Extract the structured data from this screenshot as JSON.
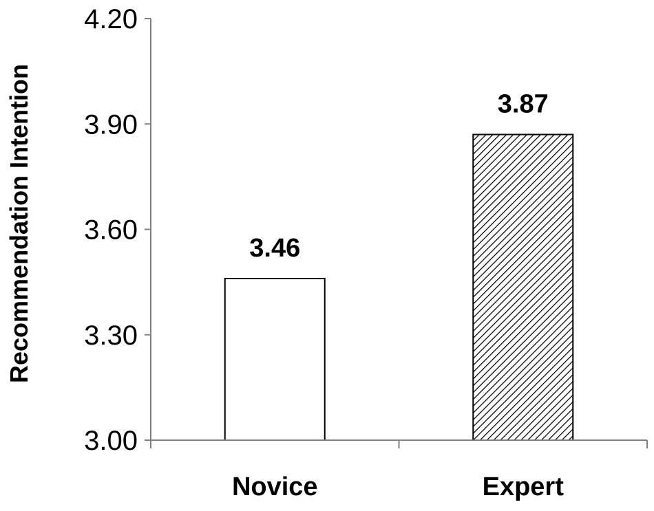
{
  "chart_data": {
    "type": "bar",
    "categories": [
      "Novice",
      "Expert"
    ],
    "values": [
      3.46,
      3.87
    ],
    "data_labels": [
      "3.46",
      "3.87"
    ],
    "fills": [
      "#ffffff",
      "hatch"
    ],
    "title": "",
    "xlabel": "",
    "ylabel": "Recommendation Intention",
    "ylim": [
      3.0,
      4.2
    ],
    "yticks": [
      3.0,
      3.3,
      3.6,
      3.9,
      4.2
    ],
    "ytick_labels": [
      "3.00",
      "3.30",
      "3.60",
      "3.90",
      "4.20"
    ],
    "grid": false,
    "legend": "none"
  }
}
